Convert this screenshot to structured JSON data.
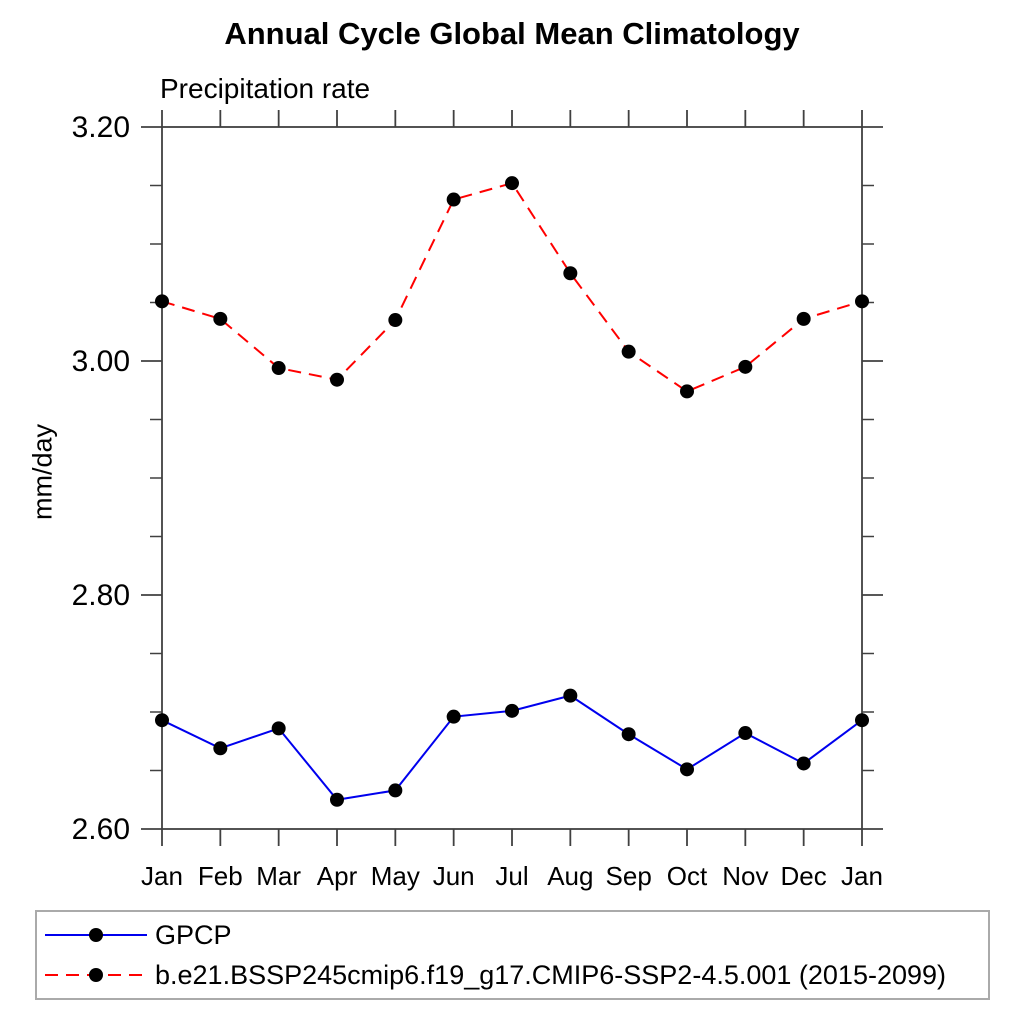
{
  "page": {
    "background": "#ffffff"
  },
  "chart_data": {
    "type": "line",
    "title": "Annual Cycle Global Mean Climatology",
    "subtitle": "Precipitation rate",
    "ylabel": "mm/day",
    "xlabel": "",
    "categories": [
      "Jan",
      "Feb",
      "Mar",
      "Apr",
      "May",
      "Jun",
      "Jul",
      "Aug",
      "Sep",
      "Oct",
      "Nov",
      "Dec",
      "Jan"
    ],
    "ylim": [
      2.6,
      3.2
    ],
    "y_major_ticks": [
      3.2,
      3.0,
      2.8,
      2.6
    ],
    "y_tick_labels": [
      "3.20",
      "3.00",
      "2.80",
      "2.60"
    ],
    "y_minor_step": 0.05,
    "grid": false,
    "legend_position": "bottom",
    "series": [
      {
        "name": "GPCP",
        "color": "#0000EE",
        "style": "solid",
        "marker": "circle",
        "marker_color": "#000000",
        "values": [
          2.693,
          2.669,
          2.686,
          2.625,
          2.633,
          2.696,
          2.701,
          2.714,
          2.681,
          2.651,
          2.682,
          2.656,
          2.693
        ]
      },
      {
        "name": "b.e21.BSSP245cmip6.f19_g17.CMIP6-SSP2-4.5.001 (2015-2099)",
        "color": "#FF0000",
        "style": "dashed",
        "marker": "circle",
        "marker_color": "#000000",
        "values": [
          3.051,
          3.036,
          2.994,
          2.984,
          3.035,
          3.138,
          3.152,
          3.075,
          3.008,
          2.974,
          2.995,
          3.036,
          3.051
        ]
      }
    ]
  },
  "colors": {
    "axis": "#404040",
    "text": "#000000",
    "legend_border": "#aaaaaa"
  }
}
